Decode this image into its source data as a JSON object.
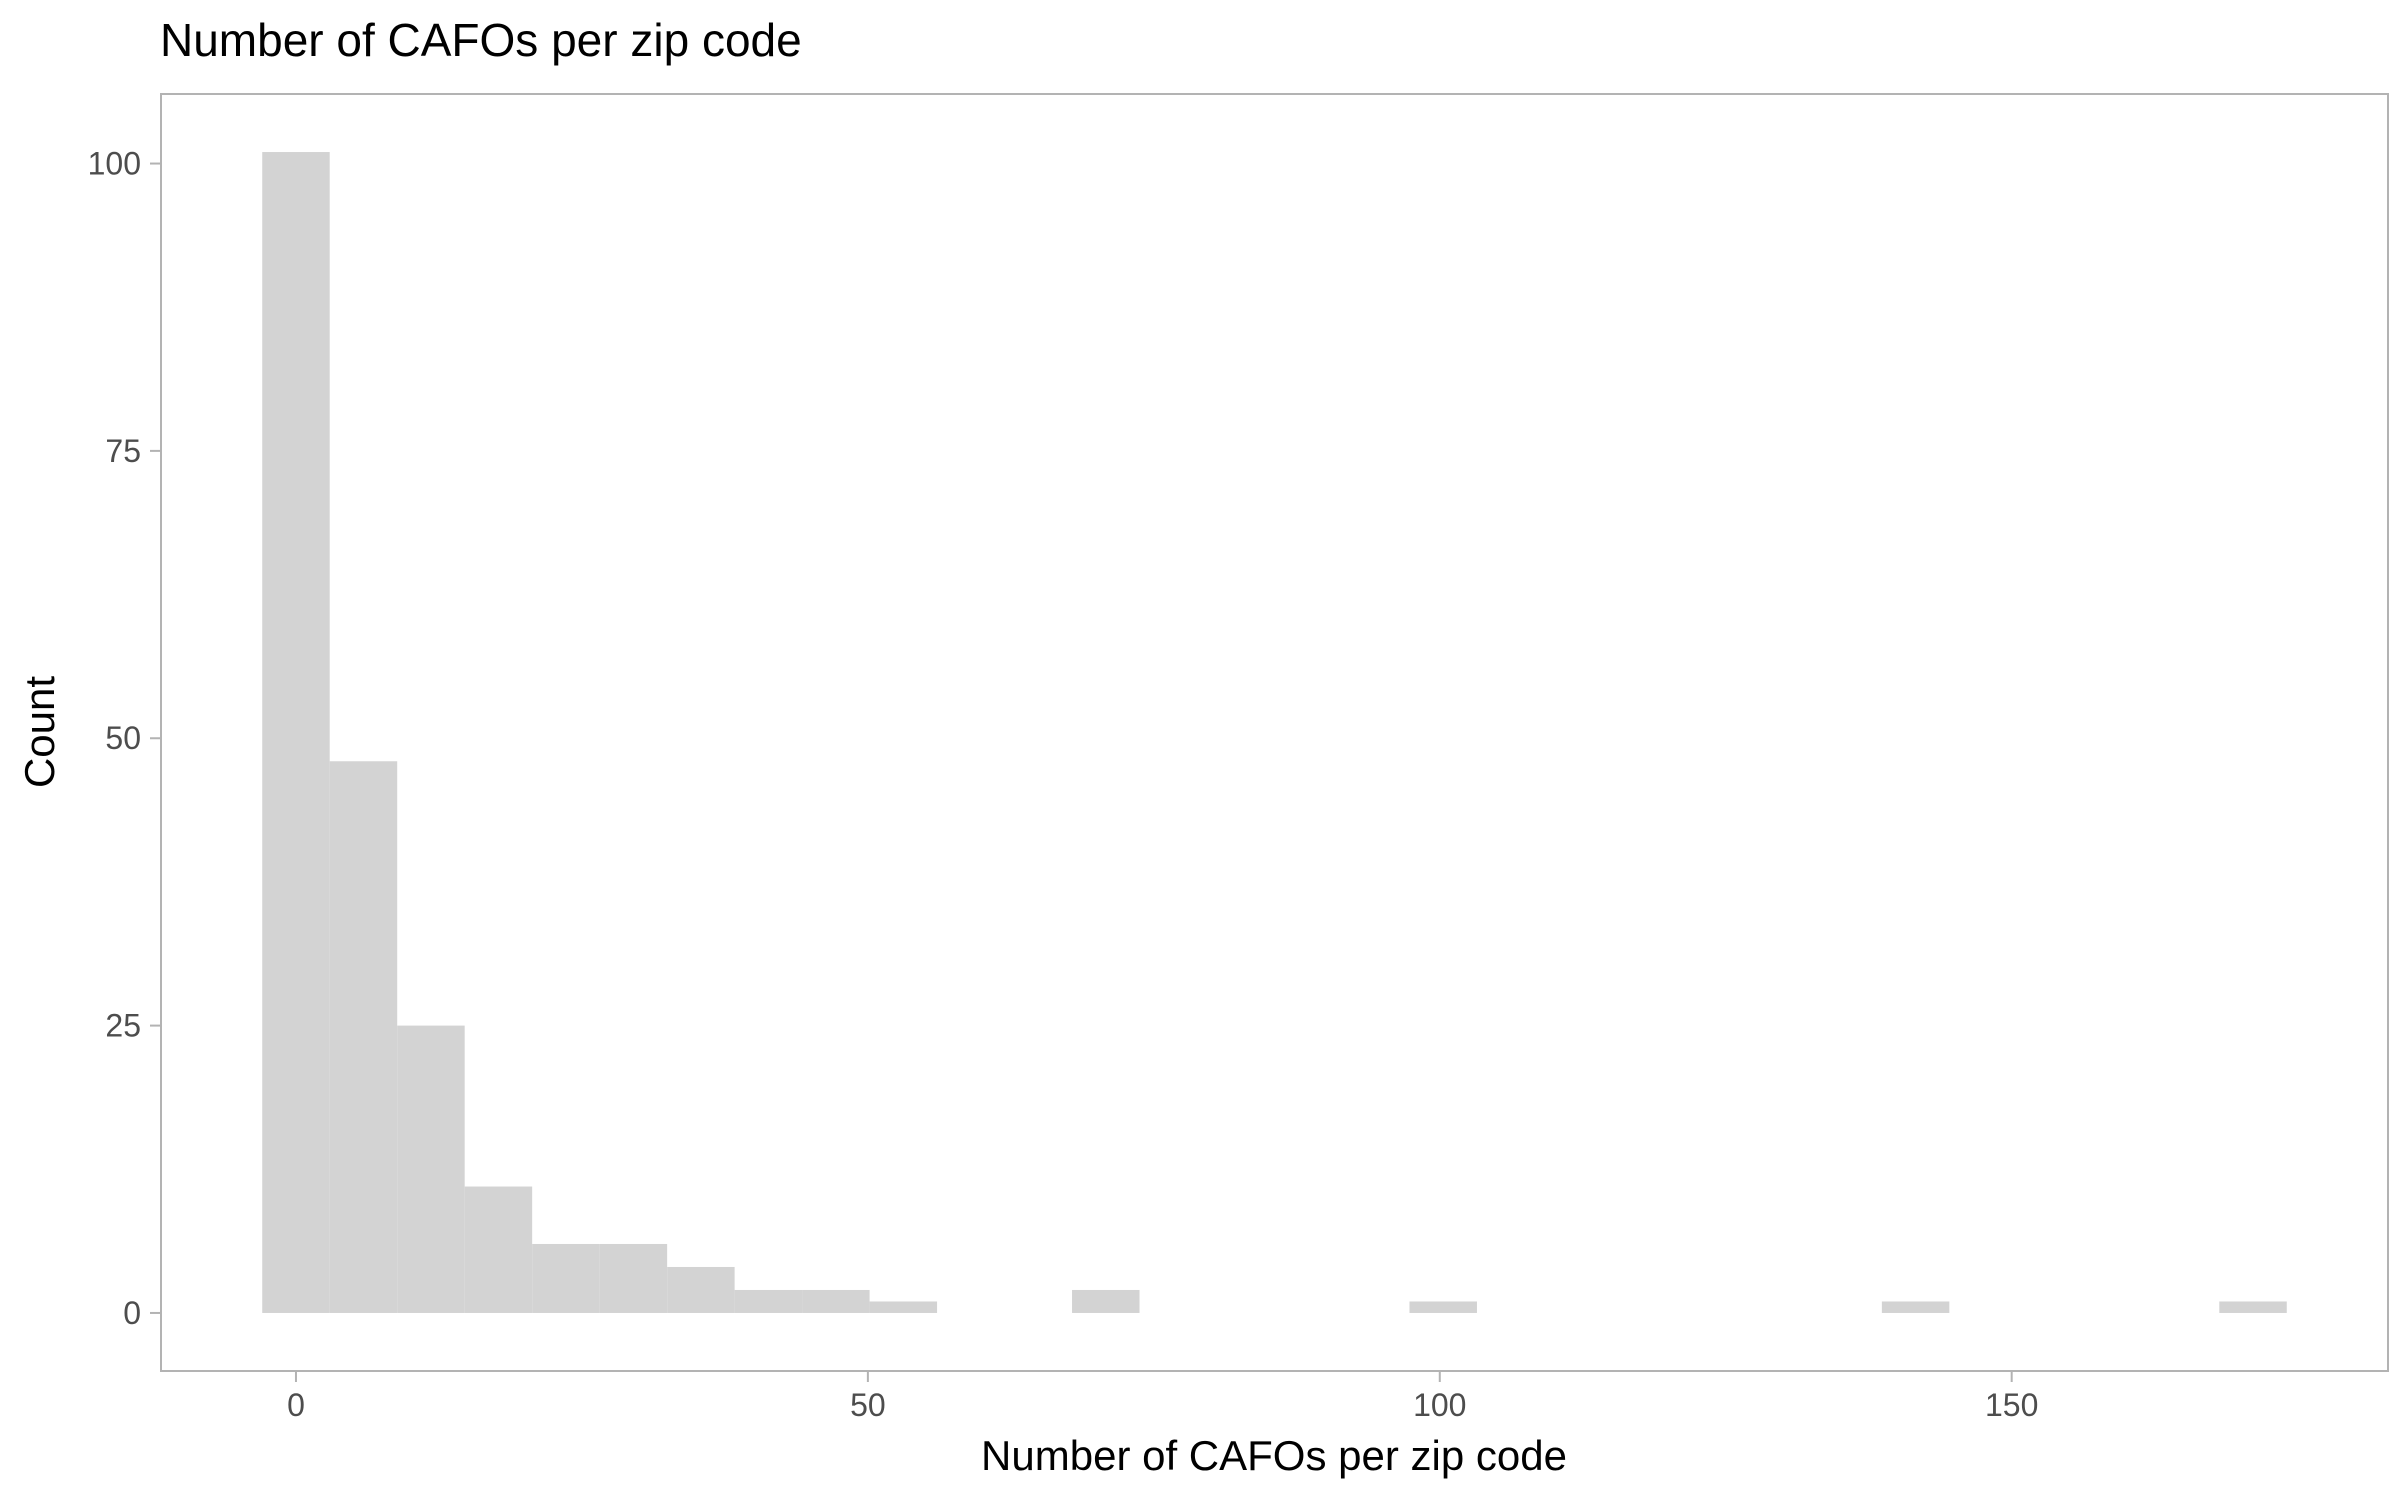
{
  "chart_data": {
    "type": "bar",
    "title": "Number of CAFOs per zip code",
    "xlabel": "Number of CAFOs per zip code",
    "ylabel": "Count",
    "bin_width": 5.9,
    "bins": [
      {
        "x0": -2.95,
        "x1": 2.95,
        "count": 101
      },
      {
        "x0": 2.95,
        "x1": 8.85,
        "count": 48
      },
      {
        "x0": 8.85,
        "x1": 14.75,
        "count": 25
      },
      {
        "x0": 14.75,
        "x1": 20.65,
        "count": 11
      },
      {
        "x0": 20.65,
        "x1": 26.55,
        "count": 6
      },
      {
        "x0": 26.55,
        "x1": 32.45,
        "count": 6
      },
      {
        "x0": 32.45,
        "x1": 38.35,
        "count": 4
      },
      {
        "x0": 38.35,
        "x1": 44.25,
        "count": 2
      },
      {
        "x0": 44.25,
        "x1": 50.15,
        "count": 2
      },
      {
        "x0": 50.15,
        "x1": 56.05,
        "count": 1
      },
      {
        "x0": 67.85,
        "x1": 73.75,
        "count": 2
      },
      {
        "x0": 97.35,
        "x1": 103.25,
        "count": 1
      },
      {
        "x0": 138.65,
        "x1": 144.55,
        "count": 1
      },
      {
        "x0": 168.15,
        "x1": 174.05,
        "count": 1
      }
    ],
    "xlim": [
      -11.8,
      182.9
    ],
    "ylim": [
      -5.05,
      106.05
    ],
    "xticks": [
      0,
      50,
      100,
      150
    ],
    "xtick_labels": [
      "0",
      "50",
      "100",
      "150"
    ],
    "yticks": [
      0,
      25,
      50,
      75,
      100
    ],
    "ytick_labels": [
      "0",
      "25",
      "50",
      "75",
      "100"
    ],
    "grid": false,
    "colors": {
      "bar": "#d3d3d3",
      "panel_border": "#b3b3b3",
      "tick": "#4d4d4d",
      "text": "#000000"
    }
  }
}
